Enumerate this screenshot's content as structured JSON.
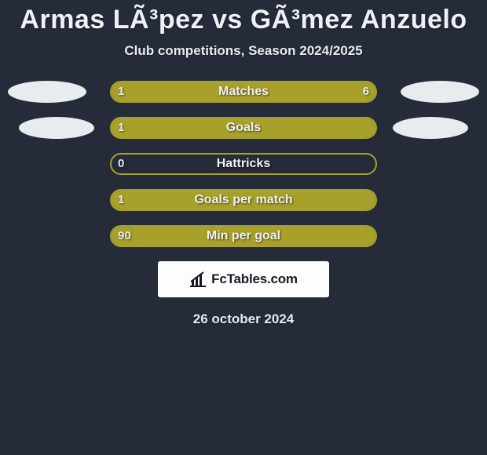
{
  "heading": {
    "title": "Armas LÃ³pez vs GÃ³mez Anzuelo",
    "subtitle": "Club competitions, Season 2024/2025"
  },
  "colors": {
    "background": "#262b39",
    "accent": "#a7a02b",
    "bar_border": "#a7a02b",
    "text": "#eef1f6",
    "attribution_bg": "#fdfdfd",
    "attribution_text": "#161a22"
  },
  "avatars": {
    "show_row0_left": true,
    "show_row0_right": true,
    "show_row1_left": true,
    "show_row1_right": true
  },
  "rows": [
    {
      "label": "Matches",
      "left_value": "1",
      "right_value": "6",
      "left_share": 0.18,
      "right_share": 0.82
    },
    {
      "label": "Goals",
      "left_value": "1",
      "right_value": "",
      "left_share": 1.0,
      "right_share": 0.0
    },
    {
      "label": "Hattricks",
      "left_value": "0",
      "right_value": "",
      "left_share": 0.0,
      "right_share": 0.0
    },
    {
      "label": "Goals per match",
      "left_value": "1",
      "right_value": "",
      "left_share": 1.0,
      "right_share": 0.0
    },
    {
      "label": "Min per goal",
      "left_value": "90",
      "right_value": "",
      "left_share": 1.0,
      "right_share": 0.0
    }
  ],
  "attribution": {
    "icon": "chart-bar-icon",
    "text": "FcTables.com"
  },
  "date": "26 october 2024"
}
